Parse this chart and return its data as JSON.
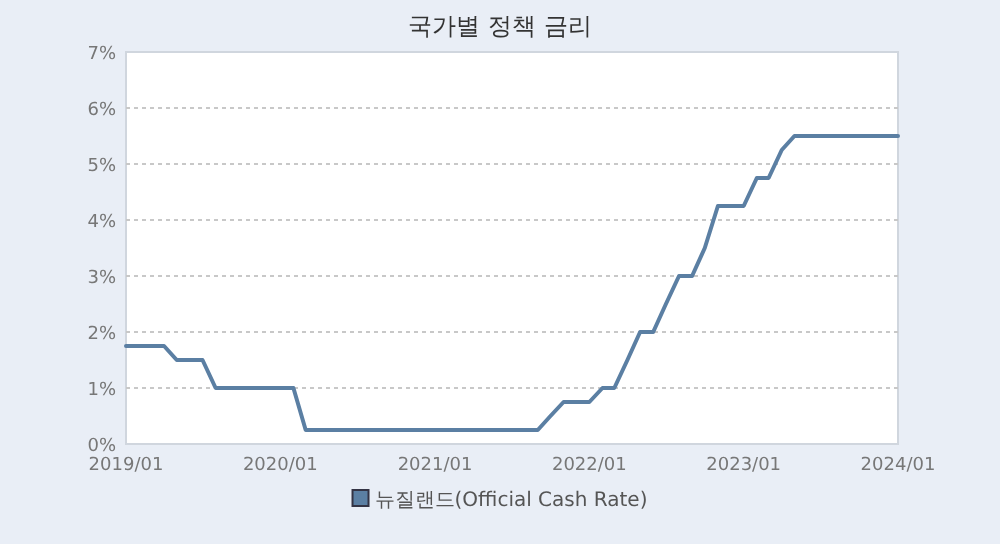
{
  "chart_data": {
    "type": "line",
    "title": "국가별 정책 금리",
    "x": [
      "2019-01",
      "2019-02",
      "2019-03",
      "2019-04",
      "2019-05",
      "2019-06",
      "2019-07",
      "2019-08",
      "2019-09",
      "2019-10",
      "2019-11",
      "2019-12",
      "2020-01",
      "2020-02",
      "2020-03",
      "2020-04",
      "2020-05",
      "2020-06",
      "2020-07",
      "2020-08",
      "2020-09",
      "2020-10",
      "2020-11",
      "2020-12",
      "2021-01",
      "2021-02",
      "2021-03",
      "2021-04",
      "2021-05",
      "2021-06",
      "2021-07",
      "2021-08",
      "2021-09",
      "2021-10",
      "2021-11",
      "2021-12",
      "2022-01",
      "2022-02",
      "2022-03",
      "2022-04",
      "2022-05",
      "2022-06",
      "2022-07",
      "2022-08",
      "2022-09",
      "2022-10",
      "2022-11",
      "2022-12",
      "2023-01",
      "2023-02",
      "2023-03",
      "2023-04",
      "2023-05",
      "2023-06",
      "2023-07",
      "2023-08",
      "2023-09",
      "2023-10",
      "2023-11",
      "2023-12",
      "2024-01"
    ],
    "series": [
      {
        "name": "뉴질랜드(Official Cash Rate)",
        "color": "#5b7fa3",
        "values": [
          1.75,
          1.75,
          1.75,
          1.75,
          1.5,
          1.5,
          1.5,
          1.0,
          1.0,
          1.0,
          1.0,
          1.0,
          1.0,
          1.0,
          0.25,
          0.25,
          0.25,
          0.25,
          0.25,
          0.25,
          0.25,
          0.25,
          0.25,
          0.25,
          0.25,
          0.25,
          0.25,
          0.25,
          0.25,
          0.25,
          0.25,
          0.25,
          0.25,
          0.5,
          0.75,
          0.75,
          0.75,
          1.0,
          1.0,
          1.5,
          2.0,
          2.0,
          2.5,
          3.0,
          3.0,
          3.5,
          4.25,
          4.25,
          4.25,
          4.75,
          4.75,
          5.25,
          5.5,
          5.5,
          5.5,
          5.5,
          5.5,
          5.5,
          5.5,
          5.5,
          5.5
        ]
      }
    ],
    "xlim": [
      "2019-01",
      "2024-01"
    ],
    "xticks": [
      {
        "value": "2019-01",
        "label": "2019/01"
      },
      {
        "value": "2020-01",
        "label": "2020/01"
      },
      {
        "value": "2021-01",
        "label": "2021/01"
      },
      {
        "value": "2022-01",
        "label": "2022/01"
      },
      {
        "value": "2023-01",
        "label": "2023/01"
      },
      {
        "value": "2024-01",
        "label": "2024/01"
      }
    ],
    "ylim": [
      0,
      7
    ],
    "yticks": [
      {
        "value": 0,
        "label": "0%"
      },
      {
        "value": 1,
        "label": "1%"
      },
      {
        "value": 2,
        "label": "2%"
      },
      {
        "value": 3,
        "label": "3%"
      },
      {
        "value": 4,
        "label": "4%"
      },
      {
        "value": 5,
        "label": "5%"
      },
      {
        "value": 6,
        "label": "6%"
      },
      {
        "value": 7,
        "label": "7%"
      }
    ],
    "grid": "y",
    "legend": "bottom",
    "marker": "none",
    "line_style": "solid"
  }
}
